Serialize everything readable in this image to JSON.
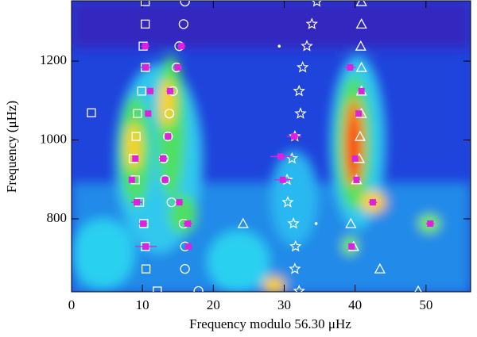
{
  "chart_data": {
    "type": "scatter",
    "x_label": "Frequency modulo 56.30 μHz",
    "y_label": "Frequency (μHz)",
    "xlim": [
      0,
      56.3
    ],
    "ylim": [
      615,
      1353
    ],
    "xticks": [
      0,
      10,
      20,
      30,
      40,
      50
    ],
    "yticks": [
      800,
      1000,
      1200
    ],
    "series": [
      {
        "marker": "square",
        "color": "#ffffff",
        "x": [
          10.4,
          10.4,
          10.1,
          10.4,
          9.9,
          9.3,
          9.1,
          8.7,
          9.0,
          9.6,
          10.2,
          10.4,
          10.5,
          12.1,
          2.8
        ],
        "y": [
          1351,
          1294,
          1238,
          1184,
          1124,
          1067,
          1009,
          953,
          899,
          842,
          788,
          730,
          673,
          617,
          1069
        ]
      },
      {
        "marker": "circle",
        "color": "#ffffff",
        "x": [
          16.0,
          15.8,
          15.2,
          14.8,
          14.3,
          13.8,
          13.6,
          13.0,
          13.2,
          14.1,
          15.8,
          16.0,
          16.0,
          17.9
        ],
        "y": [
          1351,
          1294,
          1238,
          1184,
          1124,
          1067,
          1009,
          953,
          899,
          842,
          788,
          730,
          673,
          617
        ]
      },
      {
        "marker": "star",
        "color": "#ffffff",
        "x": [
          34.6,
          33.9,
          33.2,
          32.6,
          32.1,
          32.3,
          31.5,
          31.1,
          30.4,
          30.5,
          31.3,
          31.6,
          31.5,
          32.1
        ],
        "y": [
          1351,
          1294,
          1238,
          1184,
          1124,
          1067,
          1009,
          953,
          899,
          842,
          788,
          730,
          673,
          617
        ]
      },
      {
        "marker": "triangle",
        "color": "#ffffff",
        "x": [
          40.9,
          40.9,
          40.8,
          40.9,
          40.9,
          40.9,
          40.7,
          40.6,
          40.2,
          39.4,
          39.8,
          43.5,
          48.9,
          24.2
        ],
        "y": [
          1351,
          1294,
          1238,
          1184,
          1124,
          1067,
          1009,
          953,
          899,
          788,
          730,
          673,
          617,
          788
        ]
      },
      {
        "marker": "dot",
        "color": "#ffffff",
        "x": [
          29.3,
          34.5
        ],
        "y": [
          1238,
          788
        ]
      },
      {
        "marker": "filled-square",
        "color": "#e020e0",
        "x": [
          10.4,
          10.5,
          11.1,
          10.8,
          9.0,
          8.5,
          9.2,
          10.1,
          15.5,
          15.0,
          13.9,
          13.6,
          12.9,
          13.2,
          15.2,
          16.4,
          10.5,
          16.5,
          31.4,
          29.5,
          29.8,
          39.3,
          40.9,
          40.5,
          40.0,
          40.2,
          42.5,
          50.6,
          39.5
        ],
        "y": [
          1238,
          1184,
          1124,
          1067,
          953,
          899,
          842,
          788,
          1238,
          1184,
          1124,
          1009,
          953,
          899,
          842,
          788,
          730,
          730,
          1009,
          958,
          899,
          1184,
          1124,
          1067,
          953,
          899,
          842,
          788,
          730
        ],
        "xerr": [
          0.6,
          0.8,
          0.5,
          0.4,
          0.4,
          0.4,
          0.8,
          0.6,
          0.6,
          0.6,
          0.5,
          0.4,
          0.6,
          0.4,
          0.5,
          0.6,
          1.5,
          0.4,
          1.0,
          1.5,
          1.2,
          0.8,
          0.4,
          0.3,
          0.3,
          0.3,
          0.6,
          0.6,
          0.3
        ]
      }
    ]
  }
}
